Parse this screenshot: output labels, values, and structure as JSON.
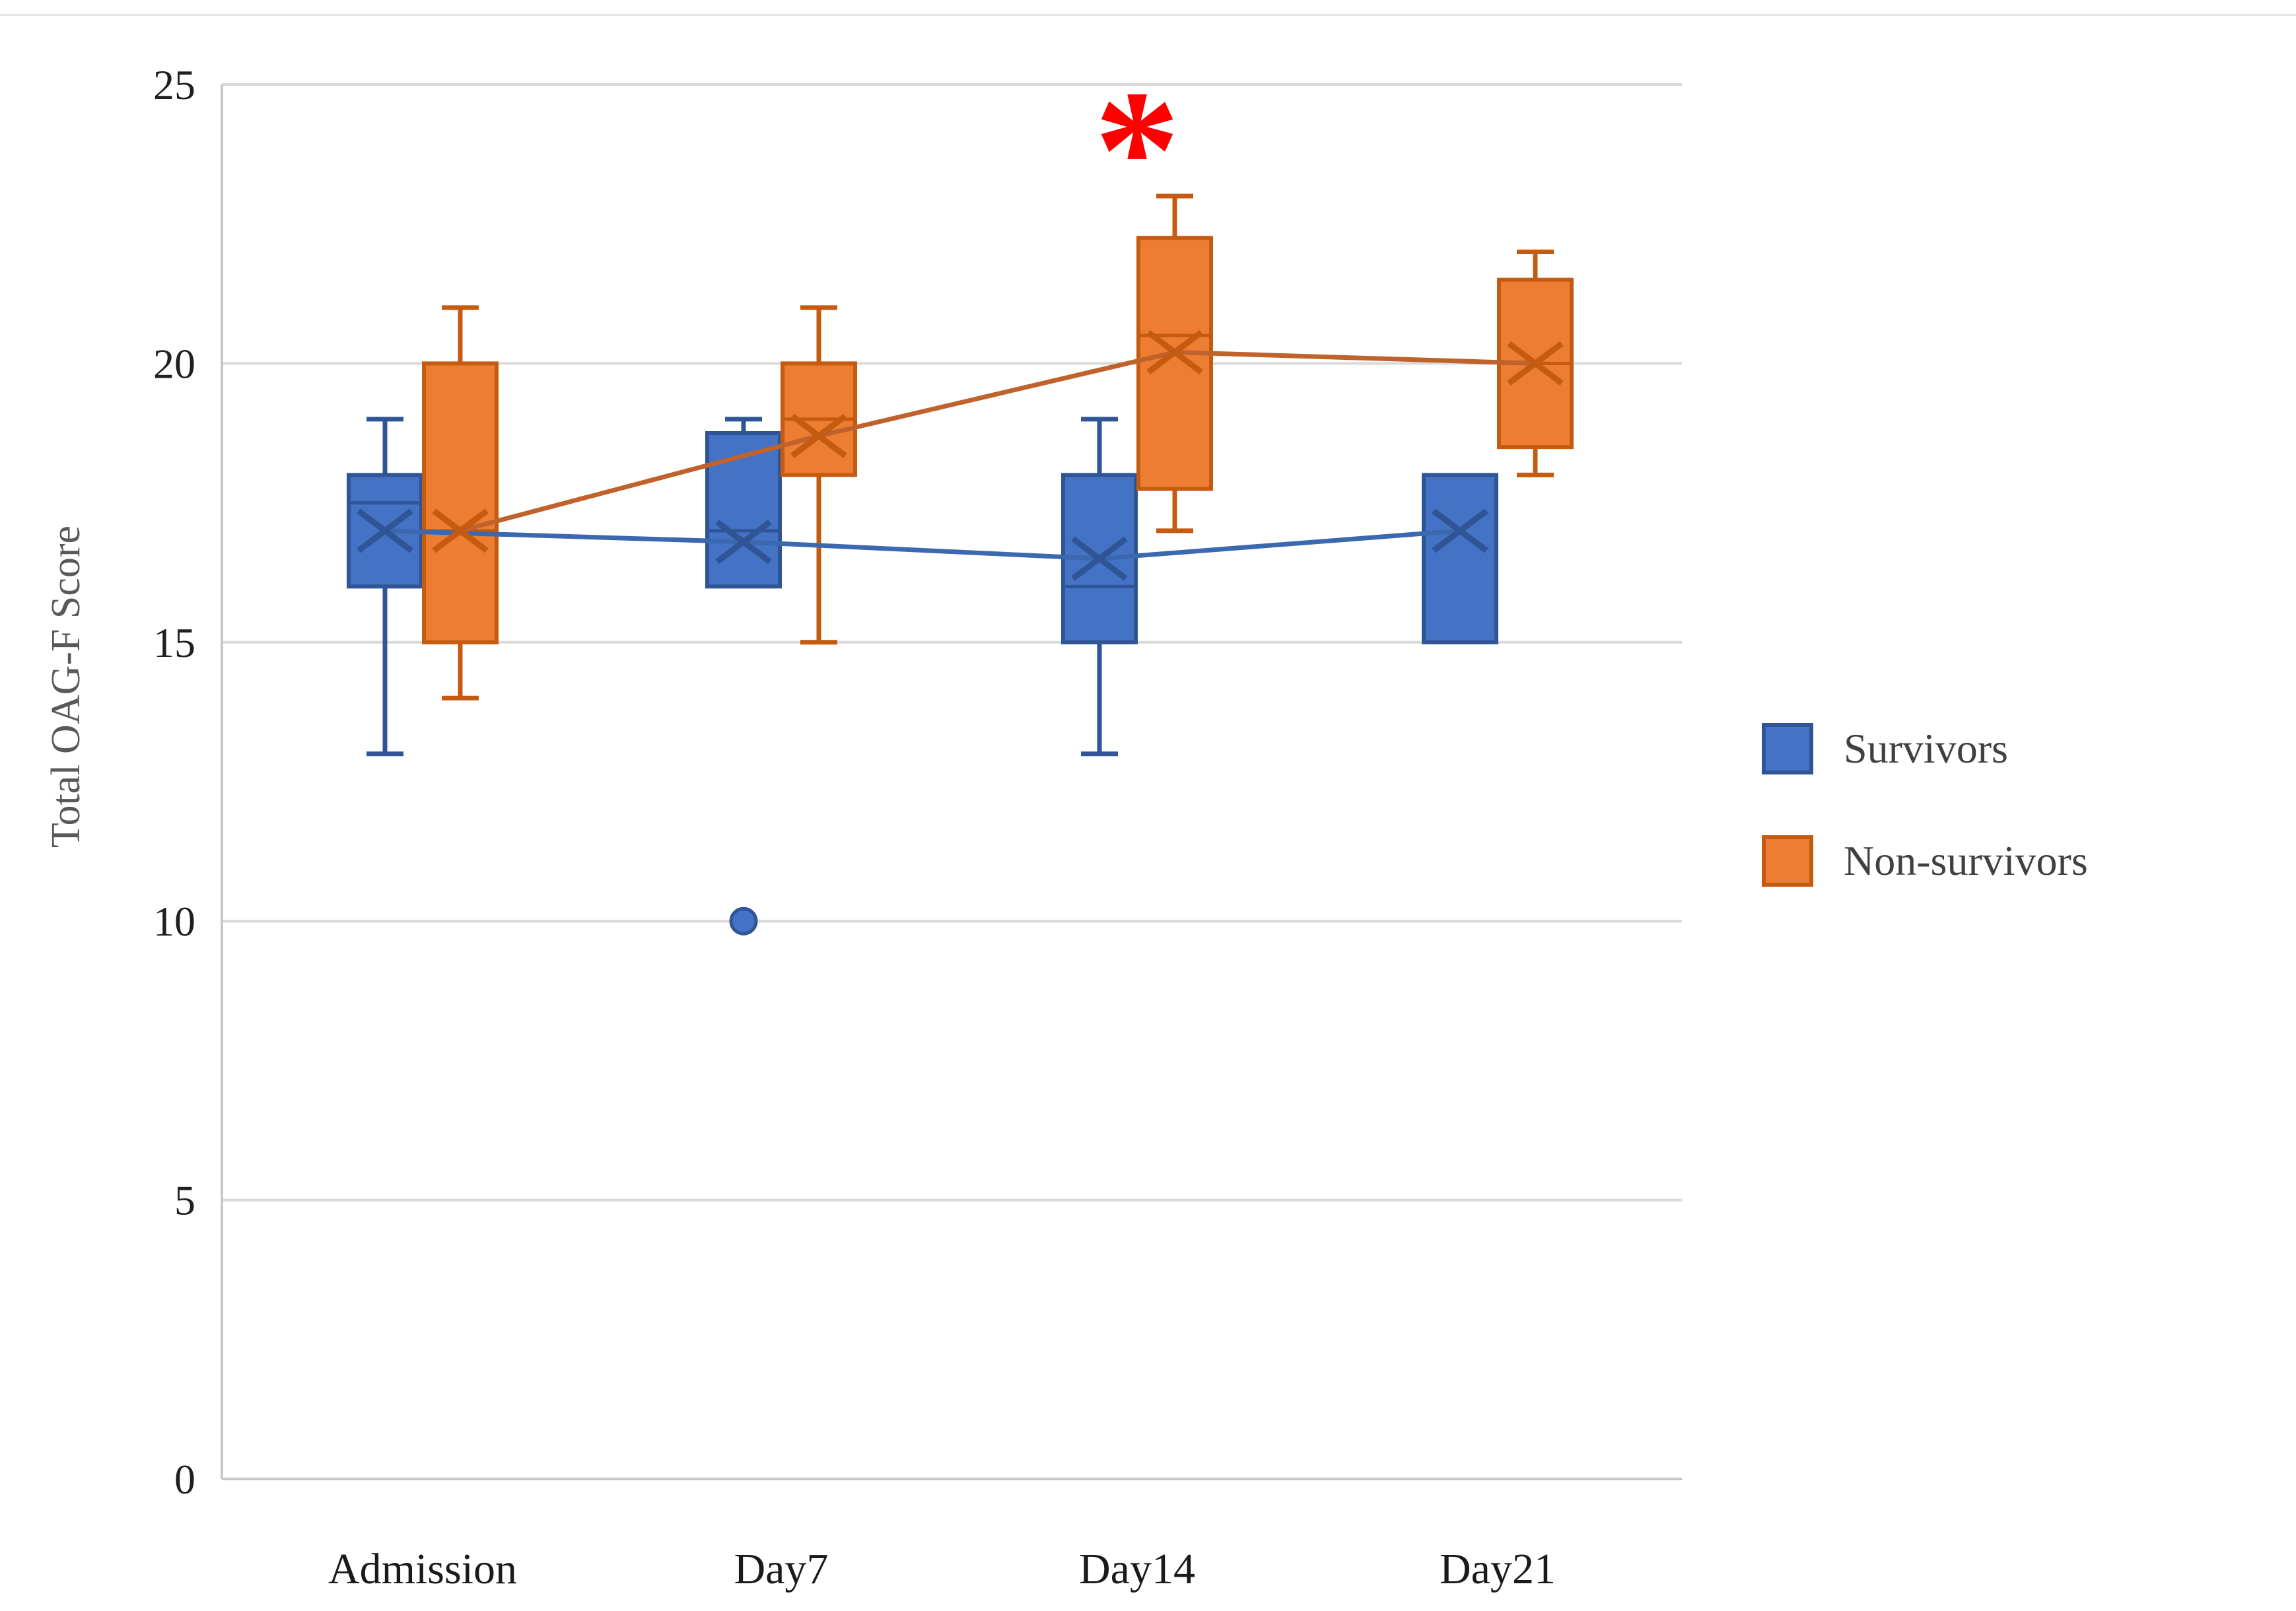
{
  "figure": {
    "background": "#ffffff",
    "top_border_color": "#e5e5e5"
  },
  "legend": {
    "position": "right",
    "items": [
      {
        "label": "Survivors",
        "fill": "#4472C4",
        "stroke": "#2F5597"
      },
      {
        "label": "Non-survivors",
        "fill": "#ED7D31",
        "stroke": "#C55A11"
      }
    ]
  },
  "chart_data": {
    "type": "box",
    "title": "",
    "xlabel": "",
    "ylabel": "Total OAG-F Score",
    "ylim": [
      0,
      25
    ],
    "yticks": [
      0,
      5,
      10,
      15,
      20,
      25
    ],
    "grid": "horizontal-only",
    "gridline_color": "#d9d9d9",
    "axis_line_color": "#c8c8c8",
    "tick_label_color": "#1f1f1f",
    "axis_title_color": "#595959",
    "legend_position": "right",
    "categories": [
      "Admission",
      "Day7",
      "Day14",
      "Day21"
    ],
    "mean_lines": true,
    "mean_marker": "x",
    "series": [
      {
        "name": "Survivors",
        "fill": "#4472C4",
        "stroke": "#2F5597",
        "mean_line_color": "#3C68B0",
        "boxes": [
          {
            "category": "Admission",
            "min": 13,
            "q1": 16,
            "median": 17.5,
            "mean": 17,
            "q3": 18,
            "max": 19
          },
          {
            "category": "Day7",
            "min": 16,
            "q1": 16,
            "median": 17,
            "mean": 16.8,
            "q3": 18.75,
            "max": 19,
            "outliers": [
              10
            ]
          },
          {
            "category": "Day14",
            "min": 13,
            "q1": 15,
            "median": 16,
            "mean": 16.5,
            "q3": 18,
            "max": 19
          },
          {
            "category": "Day21",
            "min": 15,
            "q1": 15,
            "median": 18,
            "mean": 17,
            "q3": 18,
            "max": 18
          }
        ]
      },
      {
        "name": "Non-survivors",
        "fill": "#ED7D31",
        "stroke": "#C55A11",
        "mean_line_color": "#C0622C",
        "boxes": [
          {
            "category": "Admission",
            "min": 14,
            "q1": 15,
            "median": 17,
            "mean": 17,
            "q3": 20,
            "max": 21
          },
          {
            "category": "Day7",
            "min": 15,
            "q1": 18,
            "median": 19,
            "mean": 18.7,
            "q3": 20,
            "max": 21
          },
          {
            "category": "Day14",
            "min": 17,
            "q1": 17.75,
            "median": 20.5,
            "mean": 20.2,
            "q3": 22.25,
            "max": 23
          },
          {
            "category": "Day21",
            "min": 18,
            "q1": 18.5,
            "median": 20,
            "mean": 20,
            "q3": 21.5,
            "max": 22
          }
        ]
      }
    ],
    "annotations": [
      {
        "text": "*",
        "meaning": "significance-marker",
        "color": "#FF0000",
        "category": "Day14",
        "series": "Non-survivors",
        "above_value": 23.8
      }
    ]
  }
}
